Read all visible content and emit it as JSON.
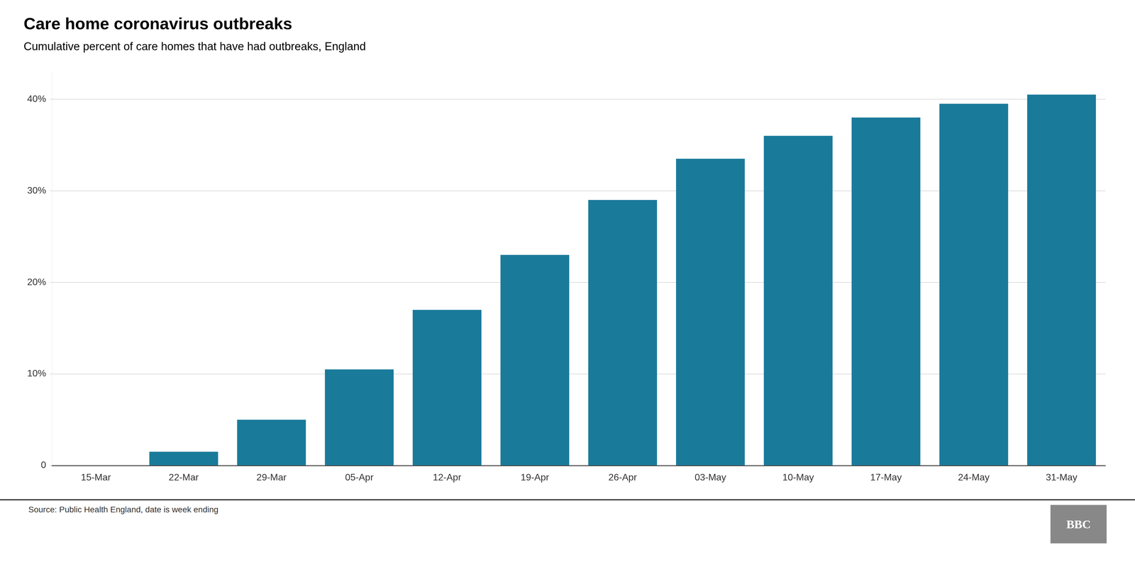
{
  "chart_data": {
    "type": "bar",
    "title": "Care home coronavirus outbreaks",
    "subtitle": "Cumulative percent of care homes that have had outbreaks, England",
    "annotations": [
      "Source: Public Health England, date is week ending",
      "BBC"
    ],
    "categories": [
      "15-Mar",
      "22-Mar",
      "29-Mar",
      "05-Apr",
      "12-Apr",
      "19-Apr",
      "26-Apr",
      "03-May",
      "10-May",
      "17-May",
      "24-May",
      "31-May"
    ],
    "values": [
      0.0,
      1.5,
      5.0,
      10.5,
      17.0,
      23.0,
      29.0,
      33.5,
      36.0,
      38.0,
      39.5,
      40.5
    ],
    "color": "#1a7a9a",
    "ylim": [
      0,
      43
    ],
    "yticks": [
      0,
      {
        "value": 10,
        "label": "10%"
      },
      {
        "value": 20,
        "label": "20%"
      },
      {
        "value": 30,
        "label": "30%"
      },
      {
        "value": 40,
        "label": "40%"
      }
    ],
    "grid": true
  }
}
